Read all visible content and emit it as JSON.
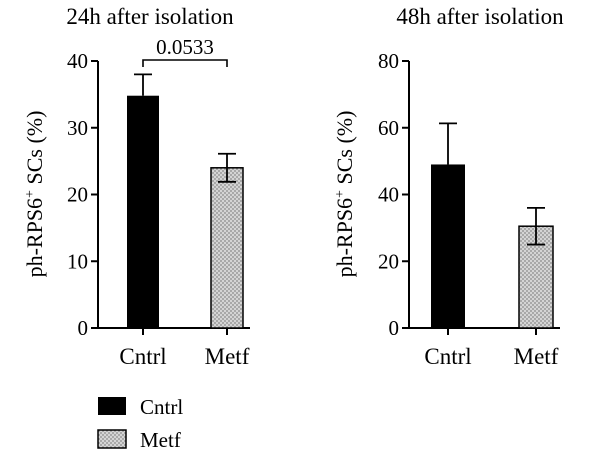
{
  "chart_data": [
    {
      "type": "bar",
      "title": "24h after isolation",
      "ylabel_main": "ph-RPS6",
      "ylabel_sup": "+",
      "ylabel_rest": " SCs (%)",
      "categories": [
        "Cntrl",
        "Metf"
      ],
      "values": [
        34.8,
        24.0
      ],
      "errors": [
        3.2,
        2.1
      ],
      "ylim": [
        0,
        40
      ],
      "yticks": [
        "0",
        "10",
        "20",
        "30",
        "40"
      ],
      "ytick_values": [
        0,
        10,
        20,
        30,
        40
      ],
      "annotation": "0.0533",
      "bar_styles": [
        "solid",
        "dotted"
      ]
    },
    {
      "type": "bar",
      "title": "48h after isolation",
      "ylabel_main": "ph-RPS6",
      "ylabel_sup": "+",
      "ylabel_rest": " SCs (%)",
      "categories": [
        "Cntrl",
        "Metf"
      ],
      "values": [
        49.0,
        30.5
      ],
      "errors": [
        12.3,
        5.5
      ],
      "ylim": [
        0,
        80
      ],
      "yticks": [
        "0",
        "20",
        "40",
        "60",
        "80"
      ],
      "ytick_values": [
        0,
        20,
        40,
        60,
        80
      ],
      "bar_styles": [
        "solid",
        "dotted"
      ]
    }
  ],
  "legend": {
    "placement": "bottom-left",
    "items": [
      {
        "label": "Cntrl",
        "style": "solid"
      },
      {
        "label": "Metf",
        "style": "dotted"
      }
    ]
  },
  "colors": {
    "solid": "#000000",
    "dotted_fill": "#d4d4d4",
    "dotted_dots": "#8a8a8a"
  }
}
